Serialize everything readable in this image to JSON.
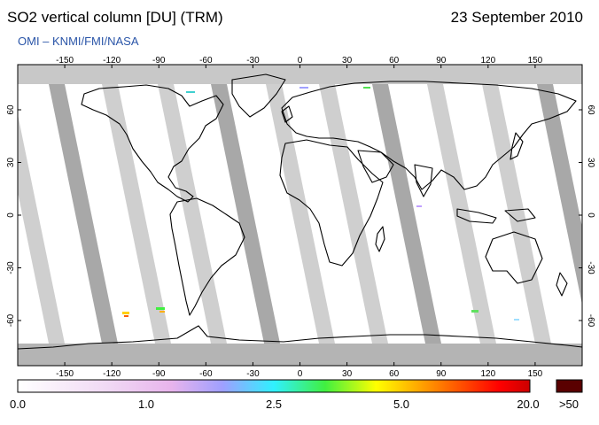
{
  "header": {
    "title": "SO2 vertical column [DU] (TRM)",
    "date": "23 September 2010",
    "credit": "OMI  –  KNMI/FMI/NASA"
  },
  "map": {
    "lon_ticks": [
      "-150",
      "-120",
      "-90",
      "-60",
      "-30",
      "0",
      "30",
      "60",
      "90",
      "120",
      "150"
    ],
    "lat_ticks": [
      "60",
      "30",
      "0",
      "-30",
      "-60"
    ]
  },
  "colorbar": {
    "labels": [
      "0.0",
      "1.0",
      "2.5",
      "5.0",
      "20.0"
    ],
    "overflow_label": ">50",
    "overflow_color": "#5a0000",
    "colors": [
      "#ffffff",
      "#f0c8f0",
      "#9f9fff",
      "#30f0ff",
      "#40f040",
      "#ffff00",
      "#ff8000",
      "#ff0000",
      "#aa0000"
    ]
  }
}
